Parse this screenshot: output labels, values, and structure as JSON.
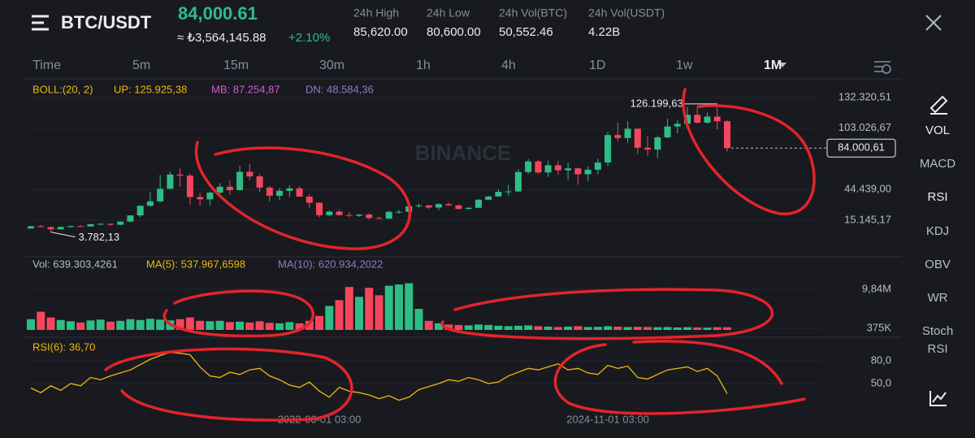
{
  "header": {
    "pair": "BTC/USDT",
    "price": "84,000.61",
    "fiat_price": "≈ ₺3,564,145.88",
    "change": "+2.10%",
    "stats": [
      {
        "label": "24h High",
        "value": "85,620.00"
      },
      {
        "label": "24h Low",
        "value": "80,600.00"
      },
      {
        "label": "24h Vol(BTC)",
        "value": "50,552.46"
      },
      {
        "label": "24h Vol(USDT)",
        "value": "4.22B"
      }
    ]
  },
  "timeframes": [
    "Time",
    "5m",
    "15m",
    "30m",
    "1h",
    "4h",
    "1D",
    "1w",
    "1M"
  ],
  "indicator_menu": [
    "VOL",
    "MACD",
    "RSI",
    "KDJ",
    "OBV",
    "WR",
    "Stoch RSI"
  ],
  "watermark": "BINANCE",
  "chart_data": [
    {
      "type": "candlestick",
      "legend": [
        "BOLL:(20, 2)",
        "UP: 125.925,38",
        "MB: 87.254,87",
        "DN: 48.584,36"
      ],
      "annotations": {
        "high": "126.199,63",
        "low": "3.782,13",
        "last": "84.000,61"
      },
      "categories": [
        null,
        null,
        null,
        null,
        null,
        null,
        null,
        null,
        null,
        null,
        null,
        null,
        null,
        null,
        null,
        null,
        null,
        null,
        null,
        null,
        null,
        null,
        null,
        null,
        null,
        null,
        null,
        null,
        null,
        "2022-06-01 03:00",
        null,
        null,
        null,
        null,
        null,
        null,
        null,
        null,
        null,
        null,
        null,
        null,
        null,
        null,
        null,
        null,
        null,
        null,
        null,
        null,
        null,
        null,
        null,
        null,
        null,
        null,
        null,
        null,
        "2024-11-01 03:00",
        null,
        null,
        null,
        null,
        null,
        null,
        null,
        null,
        null,
        null,
        null,
        null
      ],
      "open": [
        7195,
        9350,
        8523,
        6410,
        8620,
        9448,
        9138,
        11335,
        11650,
        10776,
        13791,
        19700,
        28923,
        33092,
        45135,
        58741,
        57694,
        37254,
        35045,
        41461,
        47100,
        43824,
        61300,
        56950,
        46216,
        38466,
        43160,
        45510,
        37630,
        31801,
        19942,
        23293,
        20050,
        19423,
        20491,
        17164,
        16542,
        23125,
        23141,
        28465,
        29233,
        27210,
        30472,
        29232,
        25940,
        26962,
        34639,
        37724,
        42283,
        42580,
        61130,
        71280,
        60672,
        67530,
        62772,
        64628,
        58974,
        63327,
        70215,
        96407,
        93576,
        102429,
        84350,
        82548,
        94172,
        104591,
        107135,
        115764,
        108246,
        114049,
        109608
      ],
      "high": [
        9578,
        10500,
        9188,
        9460,
        10067,
        10380,
        11444,
        12486,
        12067,
        14100,
        19863,
        29300,
        41950,
        58352,
        61844,
        64854,
        59500,
        41330,
        42448,
        50500,
        52920,
        67000,
        69000,
        59053,
        47990,
        45821,
        48189,
        47444,
        40023,
        31982,
        24668,
        25211,
        22799,
        21085,
        21480,
        18387,
        23960,
        25250,
        29184,
        31000,
        29820,
        31431,
        31804,
        30244,
        27483,
        35280,
        38450,
        44700,
        48969,
        63913,
        73777,
        72797,
        71979,
        71997,
        70079,
        65660,
        66500,
        73620,
        99588,
        108353,
        109588,
        102500,
        95000,
        95758,
        111980,
        110530,
        123218,
        124474,
        117900,
        126199.63,
        110684
      ],
      "low": [
        6850,
        8450,
        3782.13,
        6150,
        8117,
        8833,
        8893,
        10525,
        9825,
        10374,
        13195,
        17572,
        28130,
        32296,
        44950,
        47044,
        30000,
        28805,
        29278,
        37332,
        39600,
        43283,
        53256,
        42000,
        32917,
        34322,
        37155,
        37578,
        26700,
        17622,
        18781,
        19520,
        18125,
        18190,
        15476,
        16256,
        16499,
        21351,
        19549,
        26942,
        25811,
        24800,
        28861,
        25166,
        24901,
        26538,
        34097,
        37617,
        38555,
        41884,
        59005,
        59191,
        56552,
        58402,
        53485,
        49000,
        52550,
        58946,
        66835,
        90500,
        89256,
        78258,
        76606,
        74508,
        93346,
        98200,
        105100,
        107350,
        107255,
        102000,
        80600
      ],
      "close": [
        9350,
        8523,
        6410,
        8620,
        9448,
        9138,
        11335,
        11650,
        10776,
        13791,
        19700,
        28923,
        33092,
        45135,
        58741,
        57694,
        37254,
        35045,
        41461,
        47100,
        43824,
        61300,
        56950,
        46216,
        38466,
        43160,
        45510,
        37630,
        31801,
        19942,
        23293,
        20050,
        19423,
        20491,
        17164,
        16542,
        23125,
        23141,
        28465,
        29233,
        27210,
        30472,
        29232,
        25940,
        26962,
        34639,
        37724,
        42283,
        42580,
        61130,
        71280,
        60672,
        67530,
        62772,
        64628,
        58974,
        63327,
        70215,
        96407,
        93576,
        102429,
        84350,
        82548,
        94172,
        104591,
        107135,
        115764,
        108246,
        114049,
        109608,
        84000.61
      ],
      "up_color": "#2ebd85",
      "down_color": "#f6465d",
      "ylim": [
        -7400,
        147800
      ],
      "yticks": [
        {
          "value": 132320.51,
          "label": "132.320,51"
        },
        {
          "value": 103026.67,
          "label": "103.026,67"
        },
        {
          "value": 44439.0,
          "label": "44.439,00"
        },
        {
          "value": 15145.17,
          "label": "15.145,17"
        }
      ],
      "grid": true
    },
    {
      "type": "bar",
      "legend": [
        "Vol: 639.303,4261",
        "MA(5): 537.967,6598",
        "MA(10): 620.934,2022"
      ],
      "values": [
        2600000,
        4400000,
        3000000,
        2400000,
        2100000,
        1800000,
        2300000,
        2500000,
        2000000,
        2200000,
        2600000,
        2400000,
        2700000,
        2500000,
        2300000,
        2600000,
        3000000,
        2200000,
        2100000,
        2200000,
        1900000,
        2000000,
        1800000,
        2100000,
        1700000,
        1600000,
        1900000,
        1600000,
        2200000,
        3400000,
        5800000,
        7200000,
        10400000,
        8000000,
        10200000,
        8400000,
        10700000,
        11000000,
        11300000,
        5100000,
        2200000,
        1600000,
        1300000,
        1200000,
        1100000,
        1300000,
        1200000,
        1000000,
        900000,
        1000000,
        1100000,
        900000,
        800000,
        700000,
        800000,
        900000,
        700000,
        750000,
        900000,
        800000,
        700000,
        750000,
        700000,
        650000,
        700000,
        600000,
        650000,
        600000,
        550000,
        650000,
        639303.4261
      ],
      "ylim": [
        0,
        12000000
      ],
      "yticks": [
        {
          "value": 9840000,
          "label": "9,84M"
        },
        {
          "value": 375000,
          "label": "375K"
        }
      ]
    },
    {
      "type": "line",
      "legend": [
        "RSI(6): 36,70"
      ],
      "color": "#f0b90b",
      "values": [
        44,
        38,
        47,
        41,
        50,
        47,
        58,
        55,
        60,
        64,
        68,
        75,
        82,
        87,
        91,
        90,
        88,
        72,
        60,
        58,
        65,
        62,
        68,
        70,
        60,
        55,
        48,
        45,
        52,
        40,
        32,
        45,
        40,
        38,
        35,
        30,
        34,
        28,
        32,
        42,
        46,
        50,
        55,
        53,
        58,
        55,
        50,
        52,
        60,
        65,
        70,
        68,
        72,
        76,
        68,
        70,
        64,
        62,
        74,
        70,
        73,
        58,
        56,
        62,
        68,
        70,
        72,
        66,
        70,
        60,
        36.7
      ],
      "ylim": [
        5,
        95
      ],
      "yticks": [
        {
          "value": 80,
          "label": "80,0"
        },
        {
          "value": 50,
          "label": "50,0"
        }
      ]
    }
  ]
}
